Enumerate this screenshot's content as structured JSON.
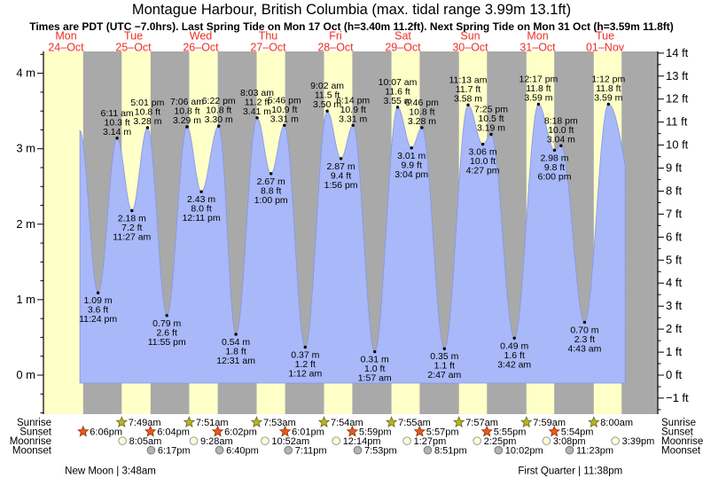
{
  "title": "Montague Harbour, British Columbia (max. tidal range 3.99m 13.1ft)",
  "subtitle": "Times are PDT (UTC −7.0hrs). Last Spring Tide on Mon 17 Oct (h=3.40m 11.2ft). Next Spring Tide on Mon 31 Oct (h=3.59m 11.8ft)",
  "colors": {
    "day_band": "#ffffc8",
    "night_band": "#a9a9a9",
    "tide_fill": "#a8b8f8",
    "tide_edge": "#8496e8",
    "day_label": "#ee2e24",
    "text": "#000000",
    "sunrise_icon": "#b9b427",
    "sunrise_icon_edge": "#6b6614",
    "sunset_icon": "#e8591b",
    "sunset_icon_edge": "#93330c",
    "moonrise_icon": "#ffffd6",
    "moonrise_icon_edge": "#9a9a9a",
    "moonset_icon": "#b4b4b4",
    "moonset_icon_edge": "#787878"
  },
  "chart_data": {
    "type": "area",
    "title": "Tide heights for Montague Harbour, 24 Oct – 01 Nov",
    "ylabel_left": "m",
    "ylabel_right": "ft",
    "y_left_ticks": [
      0,
      1,
      2,
      3,
      4
    ],
    "y_right_ticks": [
      -1,
      0,
      1,
      2,
      3,
      4,
      5,
      6,
      7,
      8,
      9,
      10,
      11,
      12,
      13,
      14
    ],
    "ylim_m": [
      -0.52,
      4.29
    ],
    "unit_m_suffix": " m",
    "unit_ft_suffix": " ft",
    "days": [
      {
        "name": "Mon",
        "date": "24–Oct"
      },
      {
        "name": "Tue",
        "date": "25–Oct"
      },
      {
        "name": "Wed",
        "date": "26–Oct"
      },
      {
        "name": "Thu",
        "date": "27–Oct"
      },
      {
        "name": "Fri",
        "date": "28–Oct"
      },
      {
        "name": "Sat",
        "date": "29–Oct"
      },
      {
        "name": "Sun",
        "date": "30–Oct"
      },
      {
        "name": "Mon",
        "date": "31–Oct"
      },
      {
        "name": "Tue",
        "date": "01–Nov"
      }
    ],
    "tide_events": [
      {
        "day": 0,
        "time": "4:55 pm",
        "m": "3.24",
        "label": false
      },
      {
        "day": 0,
        "time": "11:24 pm",
        "m": "1.09",
        "ft": "3.6",
        "type": "low"
      },
      {
        "day": 1,
        "time": "6:11 am",
        "m": "3.14",
        "ft": "10.3",
        "type": "high"
      },
      {
        "day": 1,
        "time": "11:27 am",
        "m": "2.18",
        "ft": "7.2",
        "type": "low"
      },
      {
        "day": 1,
        "time": "5:01 pm",
        "m": "3.28",
        "ft": "10.8",
        "type": "high"
      },
      {
        "day": 1,
        "time": "11:55 pm",
        "m": "0.79",
        "ft": "2.6",
        "type": "low"
      },
      {
        "day": 2,
        "time": "7:06 am",
        "m": "3.29",
        "ft": "10.8",
        "type": "high"
      },
      {
        "day": 2,
        "time": "12:11 pm",
        "m": "2.43",
        "ft": "8.0",
        "type": "low"
      },
      {
        "day": 2,
        "time": "6:22 pm",
        "m": "3.30",
        "ft": "10.8",
        "type": "high"
      },
      {
        "day": 3,
        "time": "12:31 am",
        "m": "0.54",
        "ft": "1.8",
        "type": "low"
      },
      {
        "day": 3,
        "time": "8:03 am",
        "m": "3.41",
        "ft": "11.2",
        "type": "high"
      },
      {
        "day": 3,
        "time": "1:00 pm",
        "m": "2.67",
        "ft": "8.8",
        "type": "low"
      },
      {
        "day": 3,
        "time": "5:46 pm",
        "m": "3.31",
        "ft": "10.9",
        "type": "high"
      },
      {
        "day": 4,
        "time": "1:12 am",
        "m": "0.37",
        "ft": "1.2",
        "type": "low"
      },
      {
        "day": 4,
        "time": "9:02 am",
        "m": "3.50",
        "ft": "11.5",
        "type": "high"
      },
      {
        "day": 4,
        "time": "1:56 pm",
        "m": "2.87",
        "ft": "9.4",
        "type": "low"
      },
      {
        "day": 4,
        "time": "6:14 pm",
        "m": "3.31",
        "ft": "10.9",
        "type": "high"
      },
      {
        "day": 5,
        "time": "1:57 am",
        "m": "0.31",
        "ft": "1.0",
        "type": "low"
      },
      {
        "day": 5,
        "time": "10:07 am",
        "m": "3.55",
        "ft": "11.6",
        "type": "high"
      },
      {
        "day": 5,
        "time": "3:04 pm",
        "m": "3.01",
        "ft": "9.9",
        "type": "low"
      },
      {
        "day": 5,
        "time": "6:46 pm",
        "m": "3.28",
        "ft": "10.8",
        "type": "high"
      },
      {
        "day": 6,
        "time": "2:47 am",
        "m": "0.35",
        "ft": "1.1",
        "type": "low"
      },
      {
        "day": 6,
        "time": "11:13 am",
        "m": "3.58",
        "ft": "11.7",
        "type": "high"
      },
      {
        "day": 6,
        "time": "4:27 pm",
        "m": "3.06",
        "ft": "10.0",
        "type": "low"
      },
      {
        "day": 6,
        "time": "7:25 pm",
        "m": "3.19",
        "ft": "10.5",
        "type": "high"
      },
      {
        "day": 7,
        "time": "3:42 am",
        "m": "0.49",
        "ft": "1.6",
        "type": "low"
      },
      {
        "day": 7,
        "time": "12:17 pm",
        "m": "3.59",
        "ft": "11.8",
        "type": "high"
      },
      {
        "day": 7,
        "time": "6:00 pm",
        "m": "2.98",
        "ft": "9.8",
        "type": "low"
      },
      {
        "day": 7,
        "time": "8:18 pm",
        "m": "3.04",
        "ft": "10.0",
        "type": "high"
      },
      {
        "day": 8,
        "time": "4:43 am",
        "m": "0.70",
        "ft": "2.3",
        "type": "low"
      },
      {
        "day": 8,
        "time": "1:12 pm",
        "m": "3.59",
        "ft": "11.8",
        "type": "high"
      },
      {
        "day": 8,
        "time": "7:10 pm",
        "m": "2.78",
        "label": false
      }
    ],
    "sun_moon": {
      "rows": [
        {
          "label": "Sunrise",
          "icon": "sunrise-icon",
          "events": [
            {
              "day": 1,
              "time": "7:49am"
            },
            {
              "day": 2,
              "time": "7:51am"
            },
            {
              "day": 3,
              "time": "7:53am"
            },
            {
              "day": 4,
              "time": "7:54am"
            },
            {
              "day": 5,
              "time": "7:55am"
            },
            {
              "day": 6,
              "time": "7:57am"
            },
            {
              "day": 7,
              "time": "7:59am"
            },
            {
              "day": 8,
              "time": "8:00am"
            }
          ]
        },
        {
          "label": "Sunset",
          "icon": "sunset-icon",
          "events": [
            {
              "day": 0,
              "time": "6:06pm"
            },
            {
              "day": 1,
              "time": "6:04pm"
            },
            {
              "day": 2,
              "time": "6:02pm"
            },
            {
              "day": 3,
              "time": "6:01pm"
            },
            {
              "day": 4,
              "time": "5:59pm"
            },
            {
              "day": 5,
              "time": "5:57pm"
            },
            {
              "day": 6,
              "time": "5:55pm"
            },
            {
              "day": 7,
              "time": "5:54pm"
            }
          ]
        },
        {
          "label": "Moonrise",
          "icon": "moonrise-icon",
          "events": [
            {
              "day": 1,
              "time": "8:05am"
            },
            {
              "day": 2,
              "time": "9:28am"
            },
            {
              "day": 3,
              "time": "10:52am"
            },
            {
              "day": 4,
              "time": "12:14pm"
            },
            {
              "day": 5,
              "time": "1:27pm"
            },
            {
              "day": 6,
              "time": "2:25pm"
            },
            {
              "day": 7,
              "time": "3:08pm"
            },
            {
              "day": 8,
              "time": "3:39pm"
            }
          ]
        },
        {
          "label": "Moonset",
          "icon": "moonset-icon",
          "events": [
            {
              "day": 1,
              "time": "6:17pm"
            },
            {
              "day": 2,
              "time": "6:40pm"
            },
            {
              "day": 3,
              "time": "7:11pm"
            },
            {
              "day": 4,
              "time": "7:53pm"
            },
            {
              "day": 5,
              "time": "8:51pm"
            },
            {
              "day": 6,
              "time": "10:02pm"
            },
            {
              "day": 7,
              "time": "11:23pm"
            }
          ]
        }
      ]
    },
    "moon_phases": [
      {
        "label": "New Moon",
        "day": 1,
        "time": "3:48am"
      },
      {
        "label": "First Quarter",
        "day": 7,
        "time": "11:38pm"
      }
    ]
  }
}
